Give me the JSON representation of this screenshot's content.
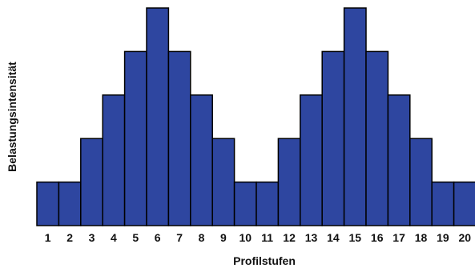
{
  "chart_data": {
    "type": "bar",
    "categories": [
      "1",
      "2",
      "3",
      "4",
      "5",
      "6",
      "7",
      "8",
      "9",
      "10",
      "11",
      "12",
      "13",
      "14",
      "15",
      "16",
      "17",
      "18",
      "19",
      "20"
    ],
    "values": [
      1,
      1,
      2,
      3,
      4,
      5,
      4,
      3,
      2,
      1,
      1,
      2,
      3,
      4,
      5,
      4,
      3,
      2,
      1,
      1
    ],
    "xlabel": "Profilstufen",
    "ylabel": "Belastungsintensität",
    "ylim": [
      0,
      5
    ],
    "grid": false,
    "colors": {
      "bar": "#2e46a0",
      "outline": "#000000"
    }
  }
}
